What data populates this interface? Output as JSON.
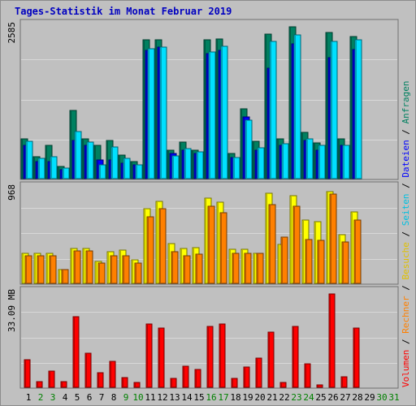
{
  "title": "Tages-Statistik im Monat Februar 2019",
  "chart_data": {
    "type": "bar",
    "title": "Tages-Statistik im Monat Februar 2019",
    "categories": [
      "1",
      "2",
      "3",
      "4",
      "5",
      "6",
      "7",
      "8",
      "9",
      "10",
      "11",
      "12",
      "13",
      "14",
      "15",
      "16",
      "17",
      "18",
      "19",
      "20",
      "21",
      "22",
      "23",
      "24",
      "25",
      "26",
      "27",
      "28",
      "29",
      "30",
      "31"
    ],
    "weekend_days": [
      "2",
      "3",
      "9",
      "10",
      "16",
      "17",
      "23",
      "24",
      "30",
      "31"
    ],
    "panels": [
      {
        "name": "top",
        "ymax_label": "2585",
        "ymax": 2585,
        "series": [
          {
            "name": "Anfragen",
            "color": "#008060",
            "values": [
              682,
              370,
              564,
              210,
              1165,
              675,
              564,
              649,
              401,
              297,
              2365,
              2365,
              478,
              618,
              478,
              2365,
              2379,
              435,
              1191,
              629,
              2460,
              682,
              2585,
              785,
              603,
              2489,
              682,
              2426,
              0,
              0,
              0
            ]
          },
          {
            "name": "Dateien",
            "color": "#0000ff",
            "values": [
              564,
              297,
              297,
              155,
              649,
              564,
              316,
              316,
              269,
              240,
              2189,
              2246,
              426,
              487,
              426,
              2124,
              2187,
              361,
              1045,
              487,
              1878,
              564,
              2295,
              649,
              482,
              2061,
              564,
              2200,
              0,
              0,
              0
            ]
          },
          {
            "name": "Seiten",
            "color": "#00e0ff",
            "values": [
              639,
              348,
              370,
              184,
              802,
              618,
              239,
              545,
              352,
              230,
              2217,
              2246,
              391,
              516,
              457,
              2161,
              2247,
              363,
              995,
              524,
              2335,
              597,
              2441,
              682,
              570,
              2334,
              571,
              2363,
              0,
              0,
              0
            ]
          }
        ]
      },
      {
        "name": "middle",
        "ymax_label": "968",
        "ymax": 968,
        "series": [
          {
            "name": "Besuche",
            "color": "#ffff00",
            "values": [
              310,
              310,
              310,
              142,
              361,
              361,
              226,
              323,
              343,
              246,
              767,
              845,
              413,
              361,
              369,
              873,
              834,
              349,
              349,
              310,
              930,
              401,
              905,
              654,
              638,
              943,
              497,
              731,
              0,
              0,
              0
            ]
          },
          {
            "name": "Rechner",
            "color": "#ff8000",
            "values": [
              284,
              284,
              284,
              142,
              335,
              335,
              206,
              284,
              284,
              206,
              683,
              767,
              323,
              284,
              303,
              796,
              724,
              310,
              310,
              310,
              809,
              473,
              790,
              452,
              439,
              918,
              425,
              654,
              0,
              0,
              0
            ]
          }
        ]
      },
      {
        "name": "bottom",
        "ymax_label": "33.09 MB",
        "ymax": 33.09,
        "series": [
          {
            "name": "Volumen",
            "color": "#ff0000",
            "values": [
              9.82,
              2.14,
              5.65,
              2.0,
              24.89,
              12.01,
              5.13,
              9.1,
              3.34,
              1.86,
              22.3,
              20.89,
              3.11,
              7.45,
              6.35,
              21.5,
              22.47,
              3.28,
              7.2,
              10.26,
              19.44,
              1.84,
              21.69,
              8.3,
              0.87,
              33.09,
              3.6,
              20.97,
              0,
              0,
              0
            ]
          }
        ]
      }
    ],
    "right_legend": [
      {
        "text": "Volumen",
        "color": "#ff0000"
      },
      {
        "text": " / ",
        "color": "#000000"
      },
      {
        "text": "Rechner",
        "color": "#ff8000"
      },
      {
        "text": " / ",
        "color": "#000000"
      },
      {
        "text": "Besuche",
        "color": "#e0c000"
      },
      {
        "text": " / ",
        "color": "#000000"
      },
      {
        "text": "Seiten",
        "color": "#00c0e0"
      },
      {
        "text": " / ",
        "color": "#000000"
      },
      {
        "text": "Dateien",
        "color": "#0000ff"
      },
      {
        "text": " / ",
        "color": "#000000"
      },
      {
        "text": "Anfragen",
        "color": "#008060"
      }
    ],
    "grid": true,
    "weekday_label_color": "#000000",
    "weekend_label_color": "#008000"
  }
}
